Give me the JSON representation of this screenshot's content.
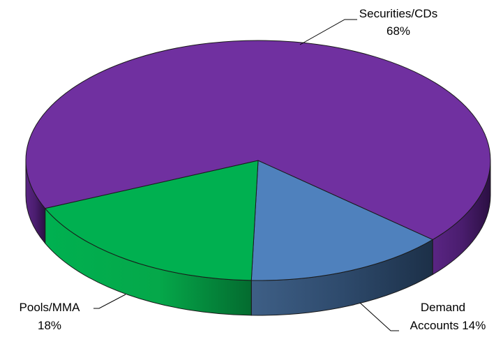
{
  "chart_data": {
    "type": "pie",
    "style": "3d",
    "title": "",
    "slices": [
      {
        "label": "Securities/CDs",
        "value": 68,
        "value_label": "68%",
        "color": "#7030A0"
      },
      {
        "label": "Demand Accounts",
        "value": 14,
        "value_label": "Demand Accounts 14%",
        "color": "#4F81BD"
      },
      {
        "label": "Pools/MMA",
        "value": 18,
        "value_label": "18%",
        "color": "#00B050"
      }
    ],
    "legend": "none"
  },
  "labels": {
    "securities_line1": "Securities/CDs",
    "securities_line2": "68%",
    "demand_line1": "Demand",
    "demand_line2": "Accounts 14%",
    "pools_line1": "Pools/MMA",
    "pools_line2": "18%"
  }
}
